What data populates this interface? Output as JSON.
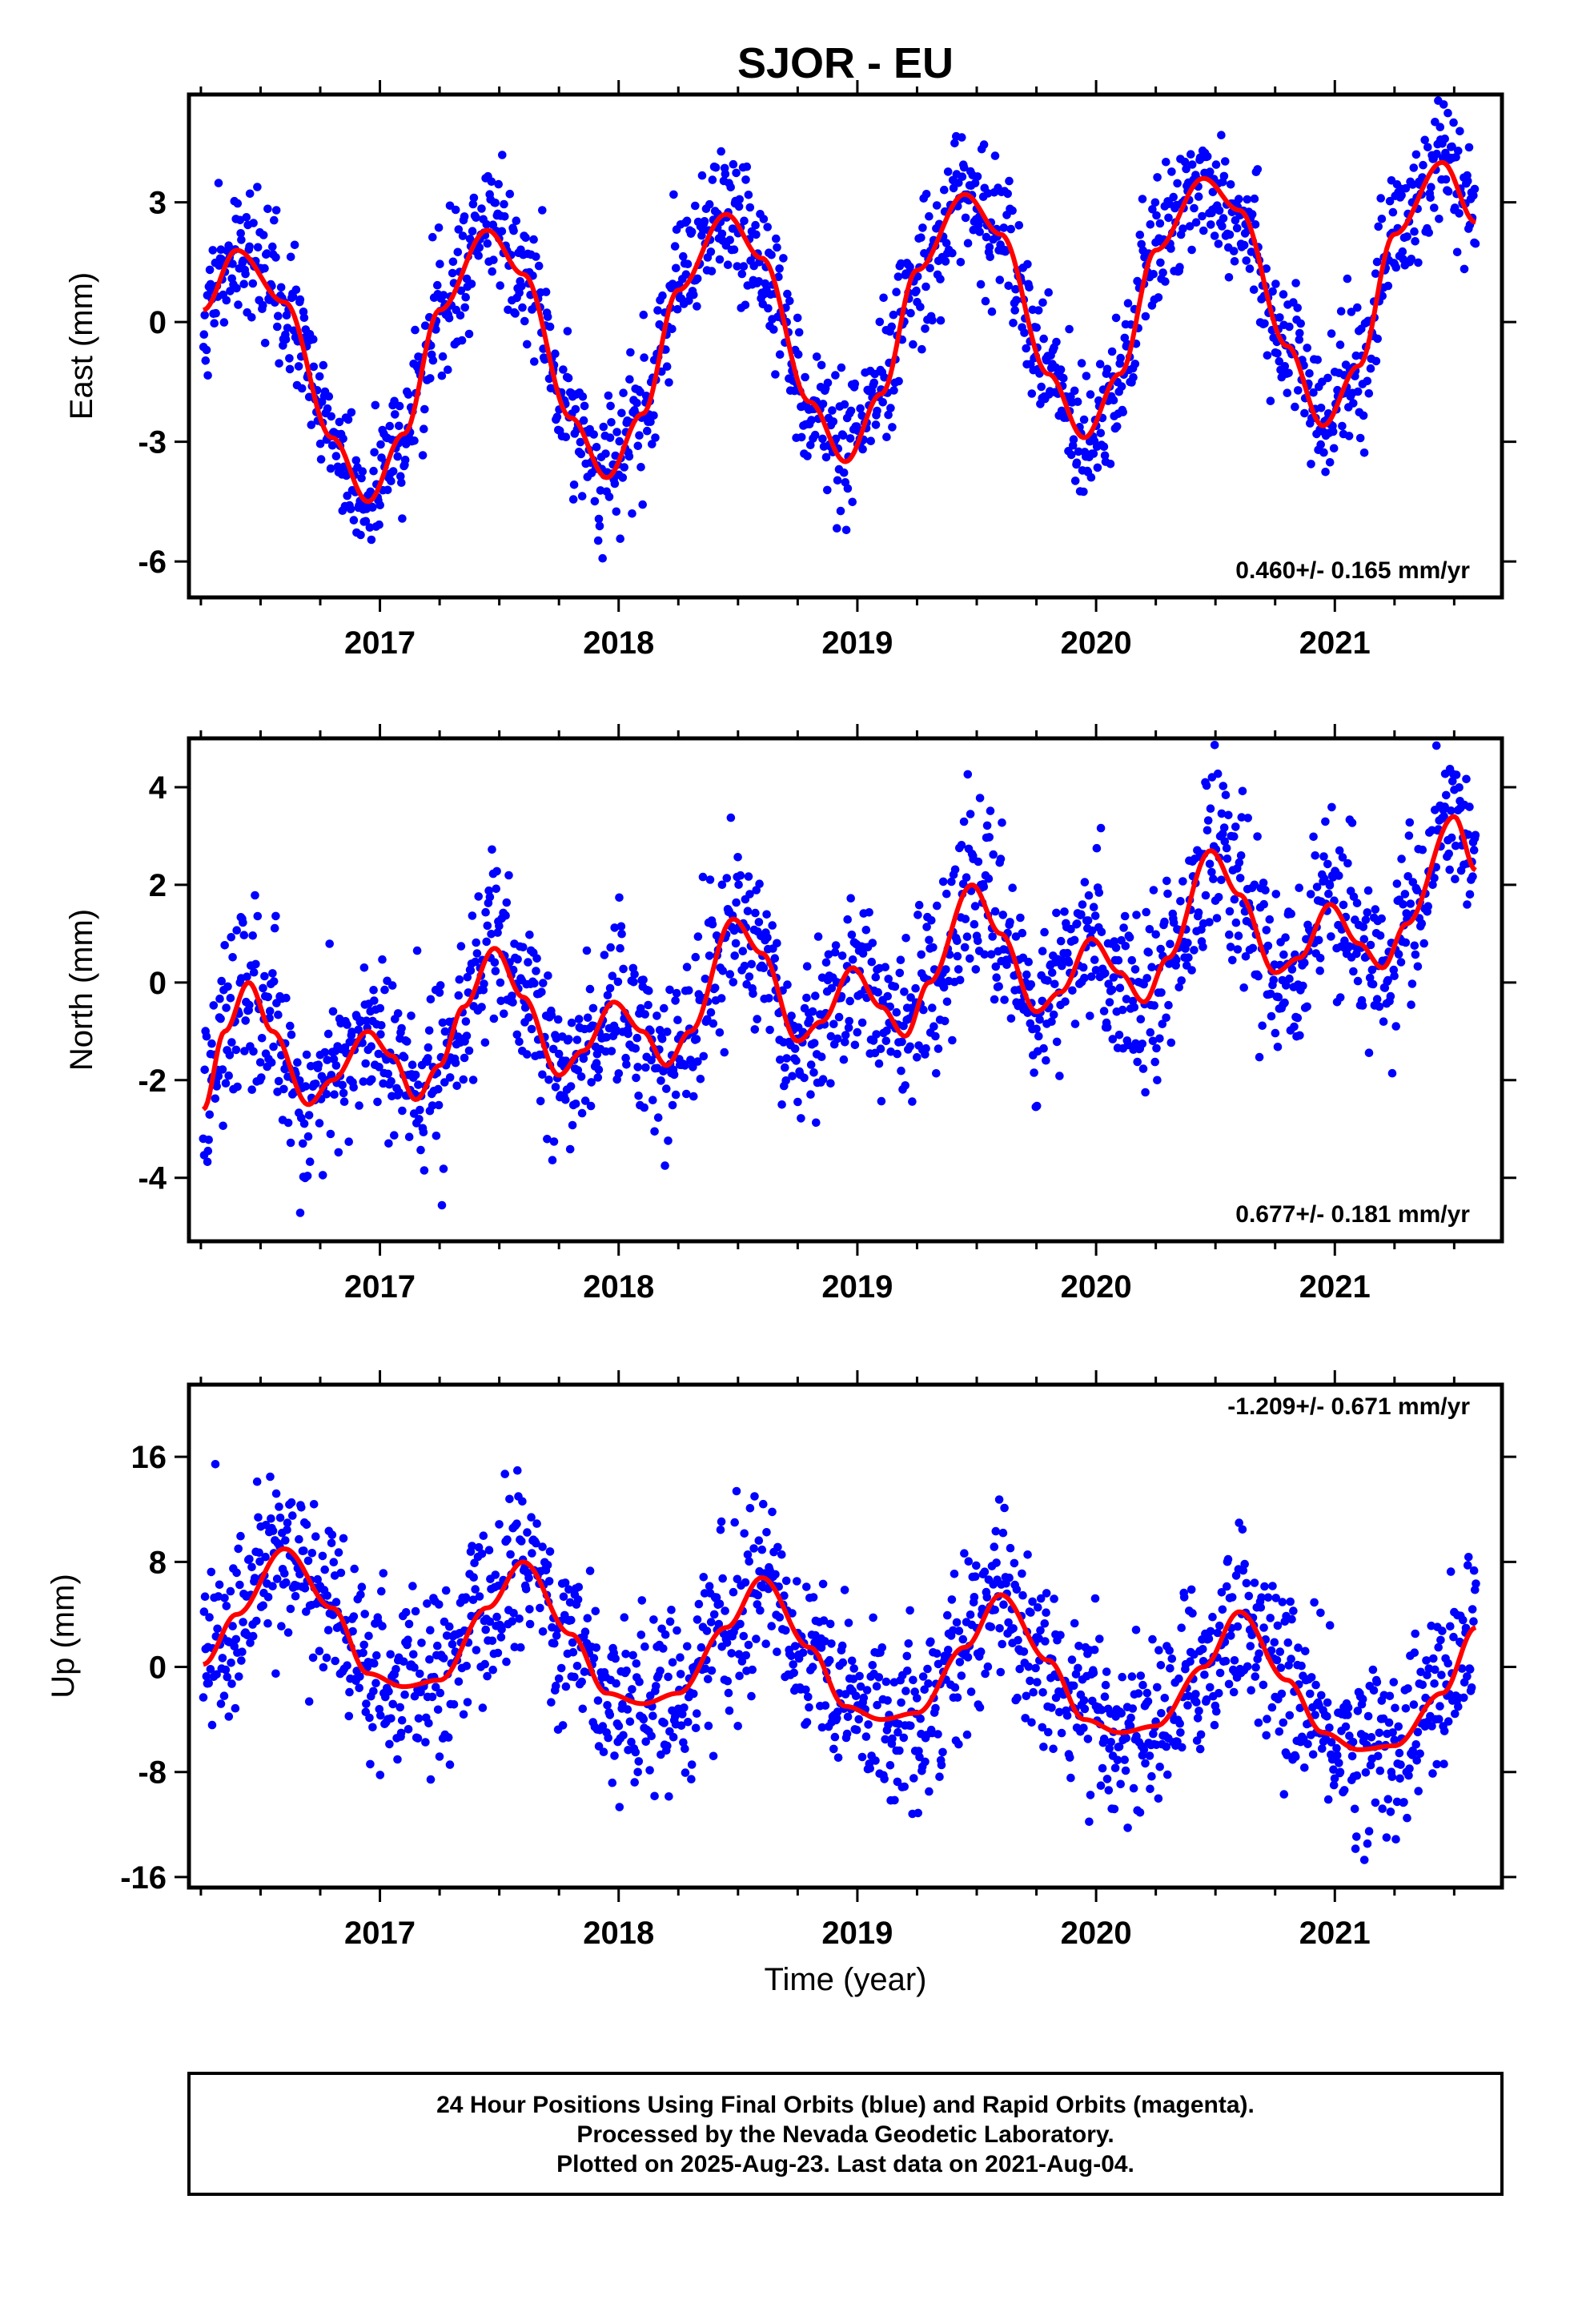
{
  "title": "SJOR - EU",
  "xlabel": "Time (year)",
  "footer": {
    "line1": "24 Hour Positions Using Final Orbits (blue) and Rapid Orbits (magenta).",
    "line2": "Processed by the Nevada Geodetic Laboratory.",
    "line3": "Plotted on 2025-Aug-23. Last data on 2021-Aug-04."
  },
  "colors": {
    "points": "#0000ff",
    "model": "#ff0000",
    "axis": "#000000"
  },
  "chart_data": [
    {
      "type": "scatter",
      "ylabel": "East (mm)",
      "rate": "0.460+/- 0.165 mm/yr",
      "rate_position": "bottom-right",
      "xlim": [
        2016.2,
        2021.7
      ],
      "ylim": [
        -6.9,
        5.7
      ],
      "xticks": [
        2017,
        2018,
        2019,
        2020,
        2021
      ],
      "xtick_labels": [
        "2017",
        "2018",
        "2019",
        "2020",
        "2021"
      ],
      "yticks": [
        -6,
        -3,
        0,
        3
      ],
      "ytick_labels": [
        "-6",
        "-3",
        "0",
        "3"
      ],
      "series": [
        {
          "role": "observations",
          "x_start": 2016.26,
          "x_end": 2021.59,
          "approx_points": 1600,
          "scatter_sd_mm": 0.85
        },
        {
          "role": "model",
          "x": [
            2016.26,
            2016.4,
            2016.6,
            2016.8,
            2016.95,
            2017.1,
            2017.25,
            2017.45,
            2017.6,
            2017.8,
            2017.95,
            2018.1,
            2018.25,
            2018.45,
            2018.6,
            2018.8,
            2018.95,
            2019.1,
            2019.25,
            2019.45,
            2019.6,
            2019.8,
            2019.95,
            2020.1,
            2020.25,
            2020.45,
            2020.6,
            2020.8,
            2020.95,
            2021.1,
            2021.25,
            2021.45,
            2021.59
          ],
          "y": [
            0.3,
            1.8,
            0.5,
            -2.9,
            -4.5,
            -2.8,
            0.3,
            2.3,
            1.2,
            -2.4,
            -3.9,
            -2.3,
            0.8,
            2.7,
            1.6,
            -2.0,
            -3.5,
            -1.8,
            1.3,
            3.2,
            2.2,
            -1.3,
            -2.9,
            -1.3,
            1.8,
            3.6,
            2.8,
            -0.6,
            -2.6,
            -1.1,
            2.2,
            4.0,
            2.5
          ]
        }
      ]
    },
    {
      "type": "scatter",
      "ylabel": "North (mm)",
      "rate": "0.677+/- 0.181 mm/yr",
      "rate_position": "bottom-right",
      "xlim": [
        2016.2,
        2021.7
      ],
      "ylim": [
        -5.3,
        5.0
      ],
      "xticks": [
        2017,
        2018,
        2019,
        2020,
        2021
      ],
      "xtick_labels": [
        "2017",
        "2018",
        "2019",
        "2020",
        "2021"
      ],
      "yticks": [
        -4,
        -2,
        0,
        2,
        4
      ],
      "ytick_labels": [
        "-4",
        "-2",
        "0",
        "2",
        "4"
      ],
      "series": [
        {
          "role": "observations",
          "x_start": 2016.26,
          "x_end": 2021.59,
          "approx_points": 1600,
          "scatter_sd_mm": 0.85
        },
        {
          "role": "model",
          "x": [
            2016.26,
            2016.35,
            2016.45,
            2016.55,
            2016.7,
            2016.8,
            2016.95,
            2017.05,
            2017.15,
            2017.25,
            2017.35,
            2017.48,
            2017.6,
            2017.75,
            2017.85,
            2017.98,
            2018.1,
            2018.2,
            2018.3,
            2018.48,
            2018.6,
            2018.75,
            2018.85,
            2018.98,
            2019.1,
            2019.2,
            2019.3,
            2019.48,
            2019.6,
            2019.75,
            2019.85,
            2019.98,
            2020.1,
            2020.2,
            2020.3,
            2020.48,
            2020.6,
            2020.75,
            2020.85,
            2020.98,
            2021.1,
            2021.2,
            2021.3,
            2021.5,
            2021.59
          ],
          "y": [
            -2.6,
            -1.0,
            0.0,
            -1.0,
            -2.5,
            -2.0,
            -1.0,
            -1.5,
            -2.4,
            -1.7,
            -0.5,
            0.7,
            -0.3,
            -1.9,
            -1.4,
            -0.4,
            -1.0,
            -1.7,
            -1.0,
            1.3,
            0.6,
            -1.2,
            -0.8,
            0.3,
            -0.5,
            -1.1,
            0.0,
            2.0,
            1.0,
            -0.6,
            -0.2,
            0.9,
            0.2,
            -0.4,
            0.5,
            2.7,
            1.8,
            0.2,
            0.5,
            1.6,
            0.8,
            0.3,
            1.2,
            3.4,
            2.3
          ]
        }
      ]
    },
    {
      "type": "scatter",
      "ylabel": "Up (mm)",
      "rate": "-1.209+/- 0.671 mm/yr",
      "rate_position": "top-right",
      "xlim": [
        2016.2,
        2021.7
      ],
      "ylim": [
        -16.8,
        21.5
      ],
      "xticks": [
        2017,
        2018,
        2019,
        2020,
        2021
      ],
      "xtick_labels": [
        "2017",
        "2018",
        "2019",
        "2020",
        "2021"
      ],
      "yticks": [
        -16,
        -8,
        0,
        8,
        16
      ],
      "ytick_labels": [
        "-16",
        "-8",
        "0",
        "8",
        "16"
      ],
      "series": [
        {
          "role": "observations",
          "x_start": 2016.26,
          "x_end": 2021.59,
          "approx_points": 1600,
          "scatter_sd_mm": 3.3
        },
        {
          "role": "model",
          "x": [
            2016.26,
            2016.4,
            2016.6,
            2016.8,
            2016.95,
            2017.1,
            2017.25,
            2017.45,
            2017.6,
            2017.8,
            2017.95,
            2018.1,
            2018.25,
            2018.45,
            2018.6,
            2018.8,
            2018.95,
            2019.1,
            2019.25,
            2019.45,
            2019.6,
            2019.8,
            2019.95,
            2020.1,
            2020.25,
            2020.45,
            2020.6,
            2020.8,
            2020.95,
            2021.1,
            2021.25,
            2021.45,
            2021.59
          ],
          "y": [
            0.2,
            4.0,
            9.0,
            4.5,
            -0.5,
            -1.5,
            -1.0,
            4.5,
            8.0,
            2.5,
            -2.0,
            -2.8,
            -2.0,
            3.0,
            6.8,
            1.5,
            -3.0,
            -4.0,
            -3.5,
            1.5,
            5.5,
            0.5,
            -4.0,
            -5.0,
            -4.5,
            0.0,
            4.2,
            -1.0,
            -5.0,
            -6.3,
            -6.0,
            -2.0,
            3.0
          ]
        }
      ]
    }
  ]
}
